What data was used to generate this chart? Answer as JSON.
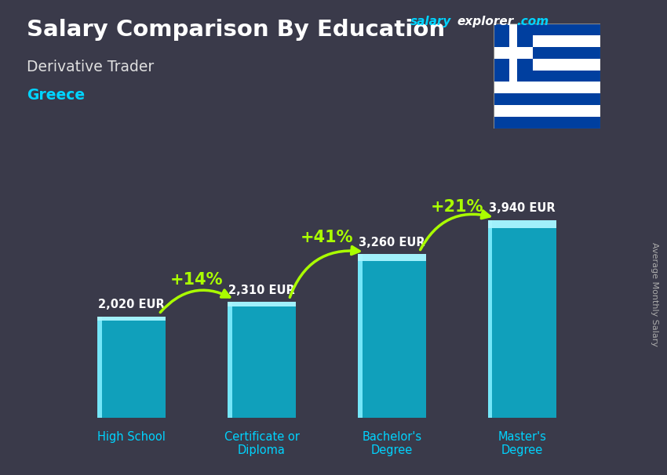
{
  "title": "Salary Comparison By Education",
  "subtitle": "Derivative Trader",
  "country": "Greece",
  "ylabel": "Average Monthly Salary",
  "categories": [
    "High School",
    "Certificate or\nDiploma",
    "Bachelor's\nDegree",
    "Master's\nDegree"
  ],
  "values": [
    2020,
    2310,
    3260,
    3940
  ],
  "value_labels": [
    "2,020 EUR",
    "2,310 EUR",
    "3,260 EUR",
    "3,940 EUR"
  ],
  "pct_changes": [
    "+14%",
    "+41%",
    "+21%"
  ],
  "bar_color": "#00c8e8",
  "bar_alpha": 0.72,
  "bg_color": "#3a3a4a",
  "title_color": "#ffffff",
  "subtitle_color": "#e0e0e0",
  "country_color": "#00d4ff",
  "value_color": "#ffffff",
  "pct_color": "#aaff00",
  "xlabel_color": "#00d4ff",
  "ylabel_color": "#aaaaaa",
  "site_salary_color": "#00d4ff",
  "site_explorer_color": "#ffffff",
  "site_com_color": "#00d4ff",
  "arrow_color": "#aaff00",
  "figsize": [
    8.5,
    6.06
  ],
  "dpi": 100,
  "bar_width": 0.52,
  "ylim": [
    0,
    5200
  ],
  "flag_blue": "#003f9f",
  "flag_white": "#ffffff"
}
